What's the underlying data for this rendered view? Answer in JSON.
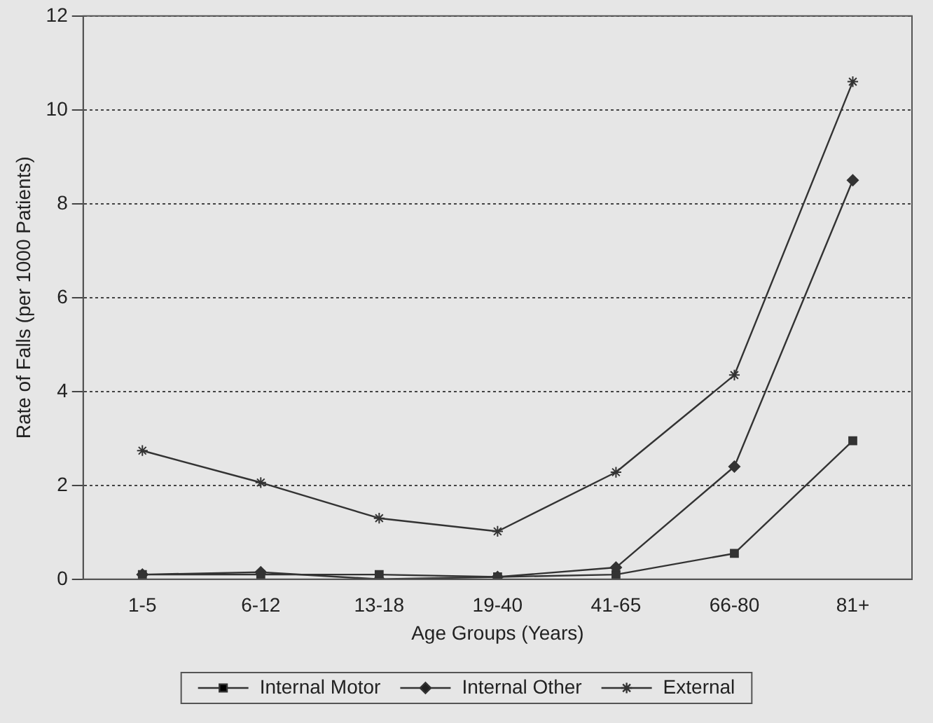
{
  "chart_data": {
    "type": "line",
    "xlabel": "Age Groups (Years)",
    "ylabel": "Rate of Falls (per 1000 Patients)",
    "categories": [
      "1-5",
      "6-12",
      "13-18",
      "19-40",
      "41-65",
      "66-80",
      "81+"
    ],
    "series": [
      {
        "name": "Internal Motor",
        "color": "#333333",
        "marker": "square",
        "values": [
          0.1,
          0.1,
          0.1,
          0.05,
          0.1,
          0.55,
          2.95
        ]
      },
      {
        "name": "Internal Other",
        "color": "#333333",
        "marker": "diamond",
        "values": [
          0.1,
          0.15,
          0,
          0.05,
          0.25,
          2.4,
          8.5
        ]
      },
      {
        "name": "External",
        "color": "#333333",
        "marker": "cross",
        "values": [
          2.74,
          2.06,
          1.3,
          1.02,
          2.28,
          4.35,
          10.6
        ]
      }
    ],
    "ylim": [
      0,
      12
    ],
    "yticks": [
      0,
      2,
      4,
      6,
      8,
      10,
      12
    ],
    "grid": "y",
    "legend": "bottom",
    "line_style": "solid"
  }
}
